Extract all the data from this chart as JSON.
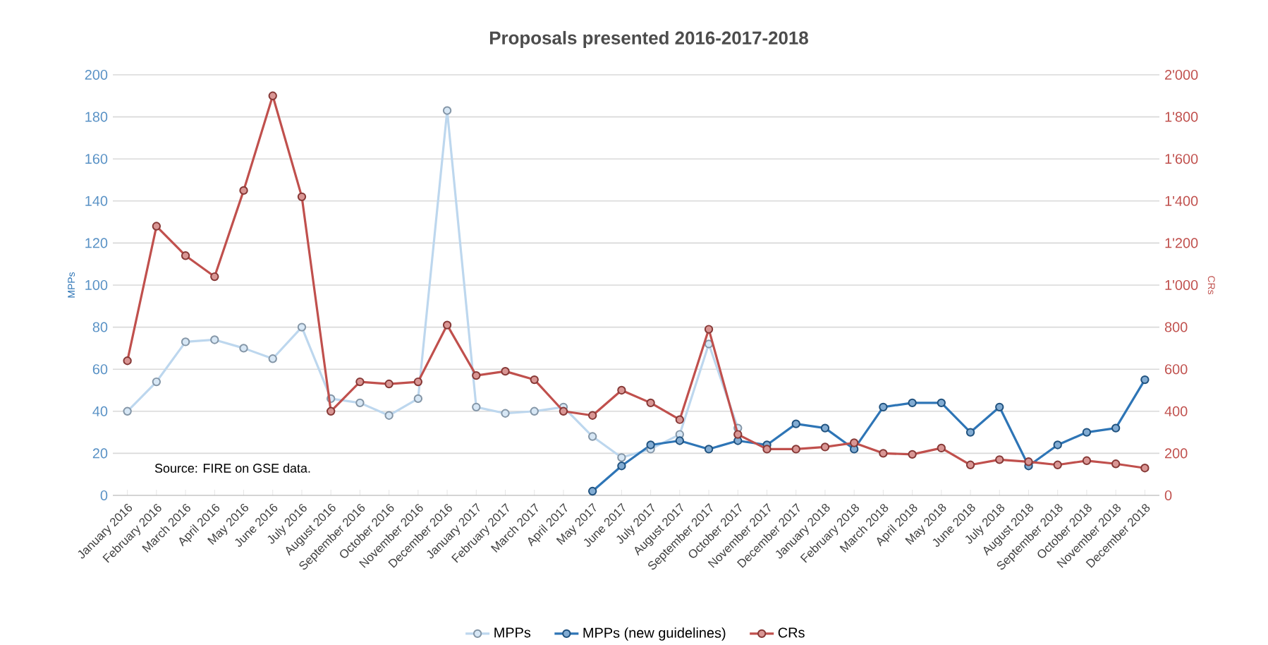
{
  "chart_data": {
    "type": "line",
    "title": "Proposals presented 2016-2017-2018",
    "ylabel": "MPPs",
    "y2label": "CRs",
    "categories": [
      "January 2016",
      "February 2016",
      "March 2016",
      "April 2016",
      "May 2016",
      "June 2016",
      "July 2016",
      "August 2016",
      "September 2016",
      "October 2016",
      "November 2016",
      "December 2016",
      "January 2017",
      "February 2017",
      "March 2017",
      "April 2017",
      "May 2017",
      "June 2017",
      "July 2017",
      "August 2017",
      "September 2017",
      "October 2017",
      "November 2017",
      "December 2017",
      "January 2018",
      "February 2018",
      "March 2018",
      "April 2018",
      "May 2018",
      "June 2018",
      "July 2018",
      "August 2018",
      "September 2018",
      "October 2018",
      "November 2018",
      "December 2018"
    ],
    "series": [
      {
        "name": "MPPs",
        "color": "#bdd7ee",
        "values": [
          40,
          54,
          73,
          74,
          70,
          65,
          80,
          46,
          44,
          38,
          46,
          183,
          42,
          39,
          40,
          42,
          28,
          18,
          22,
          29,
          72,
          32,
          null,
          null,
          null,
          null,
          null,
          null,
          null,
          null,
          null,
          null,
          null,
          null,
          null,
          null
        ]
      },
      {
        "name": "MPPs (new guidelines)",
        "color": "#2e75b6",
        "values": [
          null,
          null,
          null,
          null,
          null,
          null,
          null,
          null,
          null,
          null,
          null,
          null,
          null,
          null,
          null,
          null,
          2,
          14,
          24,
          26,
          22,
          26,
          24,
          34,
          32,
          22,
          42,
          44,
          44,
          30,
          42,
          14,
          24,
          30,
          32,
          55
        ]
      },
      {
        "name": "CRs",
        "color": "#c0504d",
        "axis": "y2",
        "values": [
          640,
          1280,
          1140,
          1040,
          1450,
          1900,
          1420,
          400,
          540,
          530,
          540,
          810,
          570,
          590,
          550,
          400,
          380,
          500,
          440,
          360,
          790,
          290,
          220,
          220,
          230,
          250,
          200,
          195,
          225,
          145,
          170,
          160,
          145,
          165,
          150,
          130
        ]
      }
    ],
    "ylim": [
      0,
      200
    ],
    "yticks": [
      0,
      20,
      40,
      60,
      80,
      100,
      120,
      140,
      160,
      180,
      200
    ],
    "y2lim": [
      0,
      2000
    ],
    "y2ticks": [
      0,
      200,
      400,
      600,
      800,
      {
        "value": 1000,
        "label": "1'000"
      },
      {
        "value": 1200,
        "label": "1'200"
      },
      {
        "value": 1400,
        "label": "1'400"
      },
      {
        "value": 1600,
        "label": "1'600"
      },
      {
        "value": 1800,
        "label": "1'800"
      },
      {
        "value": 2000,
        "label": "2'000"
      }
    ],
    "grid": "y",
    "legend": "bottom",
    "marker": "circle",
    "line_style": "solid",
    "annotations": [
      "Source: FIRE on GSE data."
    ]
  }
}
